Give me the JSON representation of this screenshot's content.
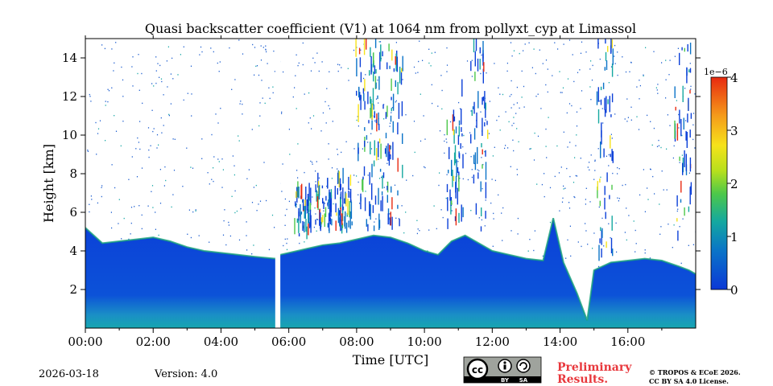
{
  "chart_data": {
    "type": "heatmap",
    "title": "Quasi backscatter coefficient (V1) at 1064 nm from pollyxt_cyp at Limassol",
    "xlabel": "Time [UTC]",
    "ylabel": "Height [km]",
    "xlim_hours": [
      0,
      18
    ],
    "ylim_km": [
      0,
      15
    ],
    "x_ticks": [
      0,
      2,
      4,
      6,
      8,
      10,
      12,
      14,
      16
    ],
    "x_tick_labels": [
      "00:00",
      "02:00",
      "04:00",
      "06:00",
      "08:00",
      "10:00",
      "12:00",
      "14:00",
      "16:00"
    ],
    "y_ticks": [
      2,
      4,
      6,
      8,
      10,
      12,
      14
    ],
    "y_tick_labels": [
      "2",
      "4",
      "6",
      "8",
      "10",
      "12",
      "14"
    ],
    "colorbar": {
      "min": 0,
      "max": 4,
      "ticks": [
        0,
        1,
        2,
        3,
        4
      ],
      "tick_labels": [
        "0",
        "1",
        "2",
        "3",
        "4"
      ],
      "scale_label": "1e−6",
      "colormap": [
        "#0b38d6",
        "#0a73c8",
        "#14a8a0",
        "#4cc84a",
        "#b8e01c",
        "#f6e21a",
        "#f59a1a",
        "#e82a10"
      ]
    },
    "data_gap_hours": [
      5.6,
      5.75
    ],
    "boundary_layer_top_km": [
      [
        0.0,
        5.2
      ],
      [
        0.5,
        4.4
      ],
      [
        1.0,
        4.5
      ],
      [
        1.5,
        4.6
      ],
      [
        2.0,
        4.7
      ],
      [
        2.5,
        4.5
      ],
      [
        3.0,
        4.2
      ],
      [
        3.5,
        4.0
      ],
      [
        4.0,
        3.9
      ],
      [
        4.5,
        3.8
      ],
      [
        5.0,
        3.7
      ],
      [
        5.6,
        3.6
      ],
      [
        5.75,
        3.8
      ],
      [
        6.5,
        4.1
      ],
      [
        7.0,
        4.3
      ],
      [
        7.5,
        4.4
      ],
      [
        8.0,
        4.6
      ],
      [
        8.5,
        4.8
      ],
      [
        9.0,
        4.7
      ],
      [
        9.5,
        4.4
      ],
      [
        10.0,
        4.0
      ],
      [
        10.4,
        3.8
      ],
      [
        10.8,
        4.5
      ],
      [
        11.2,
        4.8
      ],
      [
        11.6,
        4.4
      ],
      [
        12.0,
        4.0
      ],
      [
        12.5,
        3.8
      ],
      [
        13.0,
        3.6
      ],
      [
        13.5,
        3.5
      ],
      [
        13.8,
        5.7
      ],
      [
        14.1,
        3.4
      ],
      [
        14.5,
        1.8
      ],
      [
        14.8,
        0.4
      ],
      [
        15.0,
        3.0
      ],
      [
        15.5,
        3.4
      ],
      [
        16.0,
        3.5
      ],
      [
        16.5,
        3.6
      ],
      [
        17.0,
        3.5
      ],
      [
        17.5,
        3.2
      ],
      [
        17.8,
        3.0
      ],
      [
        18.0,
        2.8
      ]
    ],
    "cloud_plumes": [
      {
        "center_hours": 6.4,
        "bottom_km": 4.6,
        "top_km": 6.8,
        "intensity": 0.35
      },
      {
        "center_hours": 7.0,
        "bottom_km": 4.8,
        "top_km": 7.4,
        "intensity": 0.35
      },
      {
        "center_hours": 7.6,
        "bottom_km": 4.8,
        "top_km": 7.6,
        "intensity": 0.4
      },
      {
        "center_hours": 8.2,
        "bottom_km": 5.0,
        "top_km": 15.0,
        "intensity": 0.45
      },
      {
        "center_hours": 8.7,
        "bottom_km": 5.0,
        "top_km": 15.0,
        "intensity": 0.4
      },
      {
        "center_hours": 9.1,
        "bottom_km": 5.0,
        "top_km": 14.0,
        "intensity": 0.35
      },
      {
        "center_hours": 10.9,
        "bottom_km": 5.0,
        "top_km": 12.0,
        "intensity": 0.35
      },
      {
        "center_hours": 11.6,
        "bottom_km": 4.8,
        "top_km": 15.0,
        "intensity": 0.35
      },
      {
        "center_hours": 15.3,
        "bottom_km": 3.4,
        "top_km": 15.0,
        "intensity": 0.45
      },
      {
        "center_hours": 17.6,
        "bottom_km": 4.0,
        "top_km": 15.0,
        "intensity": 0.35
      }
    ]
  },
  "footer": {
    "date": "2026-03-18",
    "version": "Version: 4.0",
    "license_badge_left": "BY",
    "license_badge_right": "SA",
    "preliminary_line1": "Preliminary",
    "preliminary_line2": "Results.",
    "copyright_line1": "© TROPOS & ECoE 2026.",
    "copyright_line2": "CC BY SA 4.0 License."
  }
}
